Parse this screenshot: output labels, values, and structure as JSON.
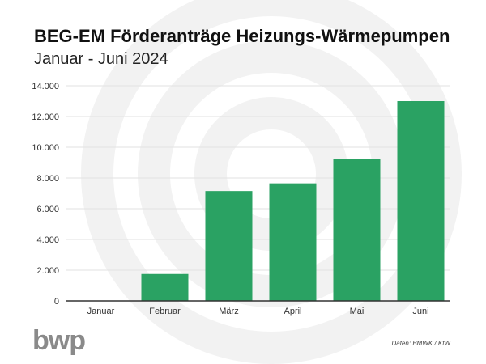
{
  "chart_data": {
    "type": "bar",
    "title": "BEG-EM Förderanträge Heizungs-Wärmepumpen",
    "subtitle": "Januar - Juni 2024",
    "categories": [
      "Januar",
      "Februar",
      "März",
      "April",
      "Mai",
      "Juni"
    ],
    "values": [
      0,
      1750,
      7150,
      7650,
      9250,
      13000
    ],
    "ylim": [
      0,
      14000
    ],
    "yticks": [
      "0",
      "2.000",
      "4.000",
      "6.000",
      "8.000",
      "10.000",
      "12.000",
      "14.000"
    ],
    "grid": true,
    "bar_color": "#2aa263",
    "source": "Daten: BMWK / KfW"
  },
  "logo": "bwp"
}
